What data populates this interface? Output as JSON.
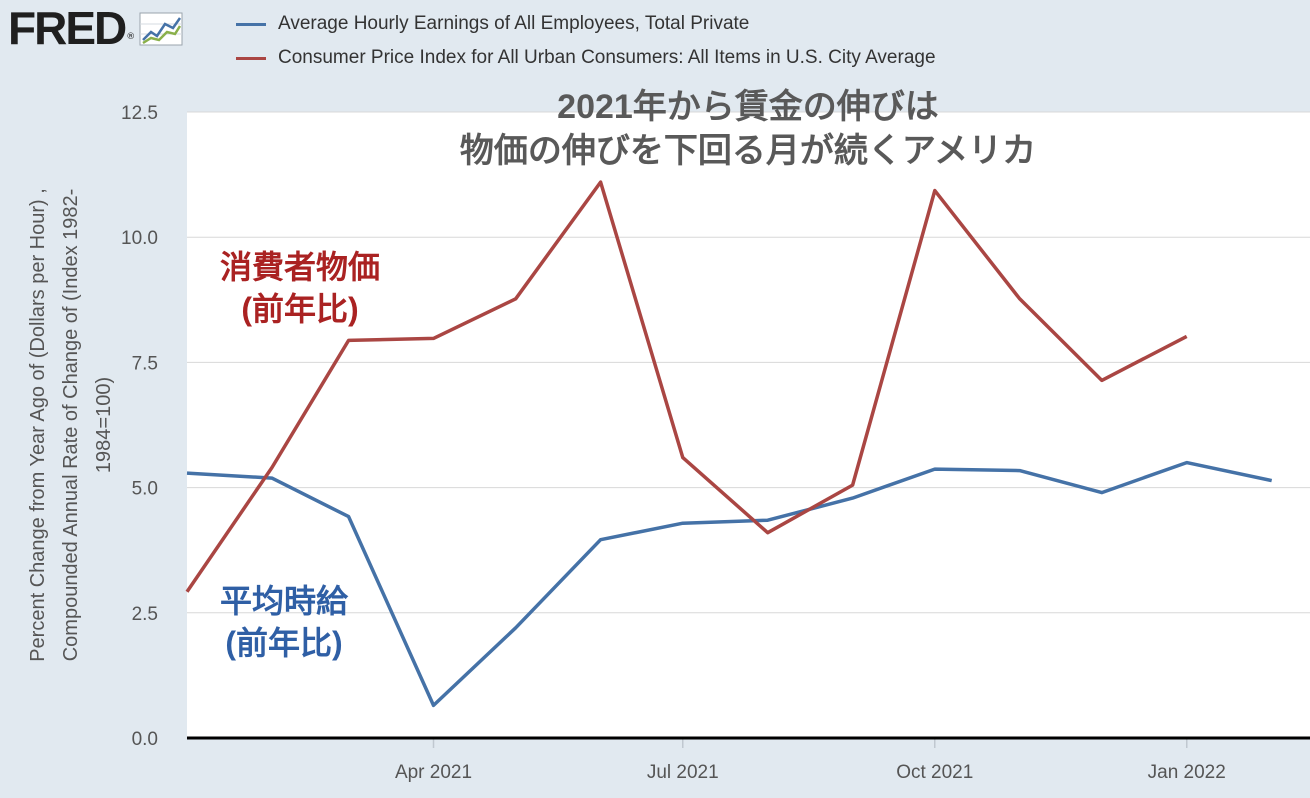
{
  "logo": {
    "text": "FRED",
    "reg_mark": "®",
    "icon": "fred-chart-icon"
  },
  "chart_data": {
    "type": "line",
    "title": "2021年から賃金の伸びは\n物価の伸びを下回る月が続くアメリカ",
    "ylabel_lines": [
      "Percent Change from Year Ago of (Dollars per Hour) ,",
      "Compounded Annual Rate of Change of (Index 1982-",
      "1984=100)"
    ],
    "xlabel": "",
    "ylim": [
      0,
      12.5
    ],
    "yticks": [
      {
        "value": 0,
        "label": "0.0"
      },
      {
        "value": 2.5,
        "label": "2.5"
      },
      {
        "value": 5,
        "label": "5.0"
      },
      {
        "value": 7.5,
        "label": "7.5"
      },
      {
        "value": 10,
        "label": "10.0"
      },
      {
        "value": 12.5,
        "label": "12.5"
      }
    ],
    "xlim": [
      "2021-01-01",
      "2022-02-15"
    ],
    "xticks": [
      {
        "date": "2021-04-01",
        "label": "Apr 2021"
      },
      {
        "date": "2021-07-01",
        "label": "Jul 2021"
      },
      {
        "date": "2021-10-01",
        "label": "Oct 2021"
      },
      {
        "date": "2022-01-01",
        "label": "Jan 2022"
      }
    ],
    "grid": true,
    "legend_position": "top",
    "series": [
      {
        "name": "Average Hourly Earnings of All Employees, Total Private",
        "color": "#4572a7",
        "points": [
          {
            "x": "2021-01-01",
            "y": 5.29
          },
          {
            "x": "2021-02-01",
            "y": 5.19
          },
          {
            "x": "2021-03-01",
            "y": 4.42
          },
          {
            "x": "2021-04-01",
            "y": 0.65
          },
          {
            "x": "2021-05-01",
            "y": 2.2
          },
          {
            "x": "2021-06-01",
            "y": 3.96
          },
          {
            "x": "2021-07-01",
            "y": 4.29
          },
          {
            "x": "2021-08-01",
            "y": 4.35
          },
          {
            "x": "2021-09-01",
            "y": 4.79
          },
          {
            "x": "2021-10-01",
            "y": 5.37
          },
          {
            "x": "2021-11-01",
            "y": 5.34
          },
          {
            "x": "2021-12-01",
            "y": 4.9
          },
          {
            "x": "2022-01-01",
            "y": 5.5
          },
          {
            "x": "2022-02-01",
            "y": 5.14
          }
        ]
      },
      {
        "name": "Consumer Price Index for All Urban Consumers: All Items in U.S. City Average",
        "color": "#aa4643",
        "points": [
          {
            "x": "2021-01-01",
            "y": 2.92
          },
          {
            "x": "2021-02-01",
            "y": 5.4
          },
          {
            "x": "2021-03-01",
            "y": 7.94
          },
          {
            "x": "2021-04-01",
            "y": 7.98
          },
          {
            "x": "2021-05-01",
            "y": 8.77
          },
          {
            "x": "2021-06-01",
            "y": 11.1
          },
          {
            "x": "2021-07-01",
            "y": 5.6
          },
          {
            "x": "2021-08-01",
            "y": 4.1
          },
          {
            "x": "2021-09-01",
            "y": 5.05
          },
          {
            "x": "2021-10-01",
            "y": 10.93
          },
          {
            "x": "2021-11-01",
            "y": 8.77
          },
          {
            "x": "2021-12-01",
            "y": 7.14
          },
          {
            "x": "2022-01-01",
            "y": 8.02
          }
        ]
      }
    ],
    "annotations": [
      {
        "id": "cpi",
        "lines": [
          "消費者物価",
          "(前年比)"
        ],
        "color": "#aa2222"
      },
      {
        "id": "wage",
        "lines": [
          "平均時給",
          "(前年比)"
        ],
        "color": "#2f5fa5"
      }
    ]
  },
  "colors": {
    "page_background": "#e1e9f0",
    "plot_background": "#ffffff",
    "gridline": "#d8d8d8",
    "axis_line": "#000000",
    "tick_text": "#555555",
    "title_text": "#595959"
  }
}
